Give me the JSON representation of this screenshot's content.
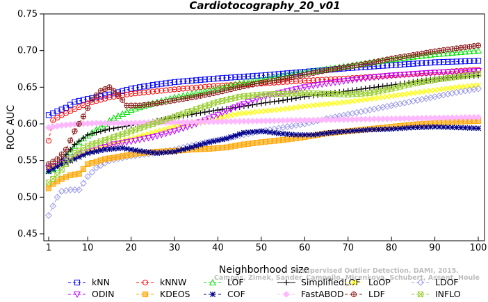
{
  "chart_data": {
    "type": "line",
    "title": "Cardiotocography_20_v01",
    "xlabel": "Neighborhood size",
    "ylabel": "ROC AUC",
    "xlim": [
      1,
      100
    ],
    "ylim": [
      0.45,
      0.75
    ],
    "xticks": [
      "1",
      "10",
      "20",
      "30",
      "40",
      "50",
      "60",
      "70",
      "80",
      "90",
      "100"
    ],
    "yticks": [
      "0.45",
      "0.50",
      "0.55",
      "0.60",
      "0.65",
      "0.70",
      "0.75"
    ],
    "grid": false,
    "legend_position": "bottom",
    "watermark": [
      "Unsupervised Outlier Detection. DAMI, 2015.",
      "Campos, Zimek, Sander, Campello, Micenkova, Schubert, Assent, Houle"
    ],
    "series": [
      {
        "name": "kNN",
        "color": "#0000ff",
        "marker": "square",
        "dash": "4,3",
        "points": [
          [
            1,
            0.612
          ],
          [
            3,
            0.617
          ],
          [
            5,
            0.622
          ],
          [
            7,
            0.63
          ],
          [
            10,
            0.634
          ],
          [
            15,
            0.64
          ],
          [
            20,
            0.648
          ],
          [
            25,
            0.653
          ],
          [
            30,
            0.657
          ],
          [
            40,
            0.662
          ],
          [
            50,
            0.666
          ],
          [
            60,
            0.671
          ],
          [
            70,
            0.676
          ],
          [
            80,
            0.68
          ],
          [
            90,
            0.684
          ],
          [
            100,
            0.686
          ]
        ]
      },
      {
        "name": "kNNW",
        "color": "#ff0000",
        "marker": "circle",
        "dash": "4,3",
        "points": [
          [
            1,
            0.577
          ],
          [
            2,
            0.605
          ],
          [
            4,
            0.612
          ],
          [
            7,
            0.62
          ],
          [
            10,
            0.628
          ],
          [
            15,
            0.636
          ],
          [
            20,
            0.641
          ],
          [
            25,
            0.644
          ],
          [
            30,
            0.647
          ],
          [
            40,
            0.652
          ],
          [
            50,
            0.655
          ],
          [
            60,
            0.659
          ],
          [
            70,
            0.662
          ],
          [
            80,
            0.666
          ],
          [
            90,
            0.67
          ],
          [
            100,
            0.674
          ]
        ]
      },
      {
        "name": "LOF",
        "color": "#00e000",
        "marker": "triangle-up",
        "dash": "4,3",
        "points": [
          [
            1,
            0.536
          ],
          [
            3,
            0.54
          ],
          [
            5,
            0.552
          ],
          [
            7,
            0.57
          ],
          [
            9,
            0.58
          ],
          [
            12,
            0.592
          ],
          [
            16,
            0.608
          ],
          [
            20,
            0.619
          ],
          [
            25,
            0.628
          ],
          [
            30,
            0.636
          ],
          [
            35,
            0.642
          ],
          [
            40,
            0.648
          ],
          [
            45,
            0.655
          ],
          [
            50,
            0.66
          ],
          [
            60,
            0.67
          ],
          [
            70,
            0.679
          ],
          [
            80,
            0.688
          ],
          [
            90,
            0.695
          ],
          [
            100,
            0.7
          ]
        ]
      },
      {
        "name": "SimplifiedLOF",
        "color": "#000000",
        "marker": "plus",
        "dash": "",
        "points": [
          [
            1,
            0.54
          ],
          [
            3,
            0.545
          ],
          [
            5,
            0.558
          ],
          [
            7,
            0.572
          ],
          [
            10,
            0.585
          ],
          [
            15,
            0.593
          ],
          [
            20,
            0.598
          ],
          [
            25,
            0.603
          ],
          [
            30,
            0.609
          ],
          [
            35,
            0.614
          ],
          [
            40,
            0.619
          ],
          [
            45,
            0.623
          ],
          [
            50,
            0.628
          ],
          [
            55,
            0.632
          ],
          [
            60,
            0.637
          ],
          [
            65,
            0.641
          ],
          [
            70,
            0.645
          ],
          [
            75,
            0.649
          ],
          [
            80,
            0.653
          ],
          [
            85,
            0.657
          ],
          [
            90,
            0.661
          ],
          [
            95,
            0.664
          ],
          [
            100,
            0.666
          ]
        ]
      },
      {
        "name": "LoOP",
        "color": "#ffff00",
        "marker": "x",
        "dash": "4,3",
        "points": [
          [
            1,
            0.54
          ],
          [
            5,
            0.548
          ],
          [
            10,
            0.562
          ],
          [
            15,
            0.572
          ],
          [
            20,
            0.58
          ],
          [
            25,
            0.588
          ],
          [
            30,
            0.596
          ],
          [
            35,
            0.602
          ],
          [
            40,
            0.608
          ],
          [
            45,
            0.614
          ],
          [
            50,
            0.617
          ],
          [
            55,
            0.62
          ],
          [
            60,
            0.624
          ],
          [
            65,
            0.627
          ],
          [
            70,
            0.63
          ],
          [
            75,
            0.634
          ],
          [
            80,
            0.638
          ],
          [
            85,
            0.642
          ],
          [
            90,
            0.646
          ],
          [
            95,
            0.65
          ],
          [
            100,
            0.653
          ]
        ]
      },
      {
        "name": "LDOF",
        "color": "#9a9ae8",
        "marker": "diamond",
        "dash": "4,3",
        "points": [
          [
            1,
            0.475
          ],
          [
            2,
            0.488
          ],
          [
            3,
            0.5
          ],
          [
            4,
            0.508
          ],
          [
            6,
            0.51
          ],
          [
            8,
            0.51
          ],
          [
            10,
            0.528
          ],
          [
            12,
            0.54
          ],
          [
            15,
            0.55
          ],
          [
            20,
            0.556
          ],
          [
            25,
            0.56
          ],
          [
            30,
            0.565
          ],
          [
            35,
            0.572
          ],
          [
            40,
            0.578
          ],
          [
            45,
            0.584
          ],
          [
            50,
            0.59
          ],
          [
            55,
            0.595
          ],
          [
            60,
            0.6
          ],
          [
            65,
            0.607
          ],
          [
            70,
            0.613
          ],
          [
            75,
            0.619
          ],
          [
            80,
            0.625
          ],
          [
            85,
            0.631
          ],
          [
            90,
            0.637
          ],
          [
            95,
            0.643
          ],
          [
            100,
            0.648
          ]
        ]
      },
      {
        "name": "ODIN",
        "color": "#c000ff",
        "marker": "triangle-down",
        "dash": "4,3",
        "points": [
          [
            1,
            0.54
          ],
          [
            3,
            0.543
          ],
          [
            5,
            0.55
          ],
          [
            8,
            0.558
          ],
          [
            12,
            0.565
          ],
          [
            16,
            0.572
          ],
          [
            20,
            0.576
          ],
          [
            25,
            0.582
          ],
          [
            30,
            0.59
          ],
          [
            35,
            0.6
          ],
          [
            40,
            0.612
          ],
          [
            45,
            0.625
          ],
          [
            50,
            0.636
          ],
          [
            55,
            0.643
          ],
          [
            60,
            0.65
          ],
          [
            65,
            0.655
          ],
          [
            70,
            0.659
          ],
          [
            75,
            0.663
          ],
          [
            80,
            0.666
          ],
          [
            85,
            0.668
          ],
          [
            90,
            0.67
          ],
          [
            95,
            0.671
          ],
          [
            100,
            0.672
          ]
        ]
      },
      {
        "name": "KDEOS",
        "color": "#ffa500",
        "marker": "square-filled",
        "dash": "4,3",
        "points": [
          [
            1,
            0.512
          ],
          [
            2,
            0.518
          ],
          [
            4,
            0.525
          ],
          [
            6,
            0.53
          ],
          [
            8,
            0.532
          ],
          [
            10,
            0.545
          ],
          [
            14,
            0.552
          ],
          [
            18,
            0.556
          ],
          [
            22,
            0.56
          ],
          [
            26,
            0.562
          ],
          [
            30,
            0.563
          ],
          [
            34,
            0.565
          ],
          [
            38,
            0.566
          ],
          [
            42,
            0.568
          ],
          [
            46,
            0.572
          ],
          [
            50,
            0.575
          ],
          [
            55,
            0.578
          ],
          [
            60,
            0.582
          ],
          [
            65,
            0.587
          ],
          [
            70,
            0.59
          ],
          [
            75,
            0.593
          ],
          [
            80,
            0.596
          ],
          [
            85,
            0.599
          ],
          [
            90,
            0.601
          ],
          [
            95,
            0.603
          ],
          [
            100,
            0.604
          ]
        ]
      },
      {
        "name": "COF",
        "color": "#00008b",
        "marker": "star",
        "dash": "4,3",
        "points": [
          [
            1,
            0.535
          ],
          [
            4,
            0.545
          ],
          [
            7,
            0.552
          ],
          [
            10,
            0.56
          ],
          [
            14,
            0.565
          ],
          [
            18,
            0.567
          ],
          [
            22,
            0.563
          ],
          [
            26,
            0.56
          ],
          [
            30,
            0.562
          ],
          [
            34,
            0.568
          ],
          [
            38,
            0.575
          ],
          [
            42,
            0.58
          ],
          [
            46,
            0.588
          ],
          [
            50,
            0.59
          ],
          [
            54,
            0.587
          ],
          [
            58,
            0.585
          ],
          [
            62,
            0.585
          ],
          [
            66,
            0.588
          ],
          [
            70,
            0.59
          ],
          [
            75,
            0.592
          ],
          [
            80,
            0.593
          ],
          [
            85,
            0.595
          ],
          [
            90,
            0.596
          ],
          [
            95,
            0.595
          ],
          [
            100,
            0.594
          ]
        ]
      },
      {
        "name": "FastABOD",
        "color": "#ffb8ff",
        "marker": "diamond-filled",
        "dash": "4,3",
        "points": [
          [
            1,
            0.595
          ],
          [
            4,
            0.598
          ],
          [
            8,
            0.6
          ],
          [
            12,
            0.601
          ],
          [
            16,
            0.601
          ],
          [
            20,
            0.601
          ],
          [
            25,
            0.602
          ],
          [
            30,
            0.602
          ],
          [
            40,
            0.603
          ],
          [
            50,
            0.604
          ],
          [
            60,
            0.605
          ],
          [
            70,
            0.606
          ],
          [
            80,
            0.607
          ],
          [
            90,
            0.608
          ],
          [
            100,
            0.609
          ]
        ]
      },
      {
        "name": "LDF",
        "color": "#8b1a1a",
        "marker": "circle-plus",
        "dash": "4,3",
        "points": [
          [
            1,
            0.545
          ],
          [
            3,
            0.552
          ],
          [
            5,
            0.565
          ],
          [
            7,
            0.59
          ],
          [
            9,
            0.61
          ],
          [
            11,
            0.633
          ],
          [
            13,
            0.645
          ],
          [
            15,
            0.65
          ],
          [
            17,
            0.64
          ],
          [
            19,
            0.625
          ],
          [
            22,
            0.625
          ],
          [
            26,
            0.628
          ],
          [
            30,
            0.632
          ],
          [
            35,
            0.637
          ],
          [
            40,
            0.643
          ],
          [
            45,
            0.65
          ],
          [
            50,
            0.656
          ],
          [
            55,
            0.661
          ],
          [
            60,
            0.667
          ],
          [
            65,
            0.673
          ],
          [
            70,
            0.678
          ],
          [
            75,
            0.683
          ],
          [
            80,
            0.689
          ],
          [
            85,
            0.694
          ],
          [
            90,
            0.699
          ],
          [
            95,
            0.703
          ],
          [
            100,
            0.707
          ]
        ]
      },
      {
        "name": "INFLO",
        "color": "#9acd32",
        "marker": "square-x",
        "dash": "4,3",
        "points": [
          [
            1,
            0.52
          ],
          [
            3,
            0.53
          ],
          [
            5,
            0.545
          ],
          [
            7,
            0.56
          ],
          [
            10,
            0.57
          ],
          [
            15,
            0.58
          ],
          [
            20,
            0.59
          ],
          [
            25,
            0.6
          ],
          [
            30,
            0.61
          ],
          [
            35,
            0.62
          ],
          [
            40,
            0.63
          ],
          [
            45,
            0.637
          ],
          [
            50,
            0.64
          ],
          [
            55,
            0.641
          ],
          [
            60,
            0.642
          ],
          [
            65,
            0.641
          ],
          [
            70,
            0.64
          ],
          [
            75,
            0.642
          ],
          [
            80,
            0.648
          ],
          [
            85,
            0.655
          ],
          [
            90,
            0.66
          ],
          [
            95,
            0.664
          ],
          [
            100,
            0.668
          ]
        ]
      }
    ]
  }
}
